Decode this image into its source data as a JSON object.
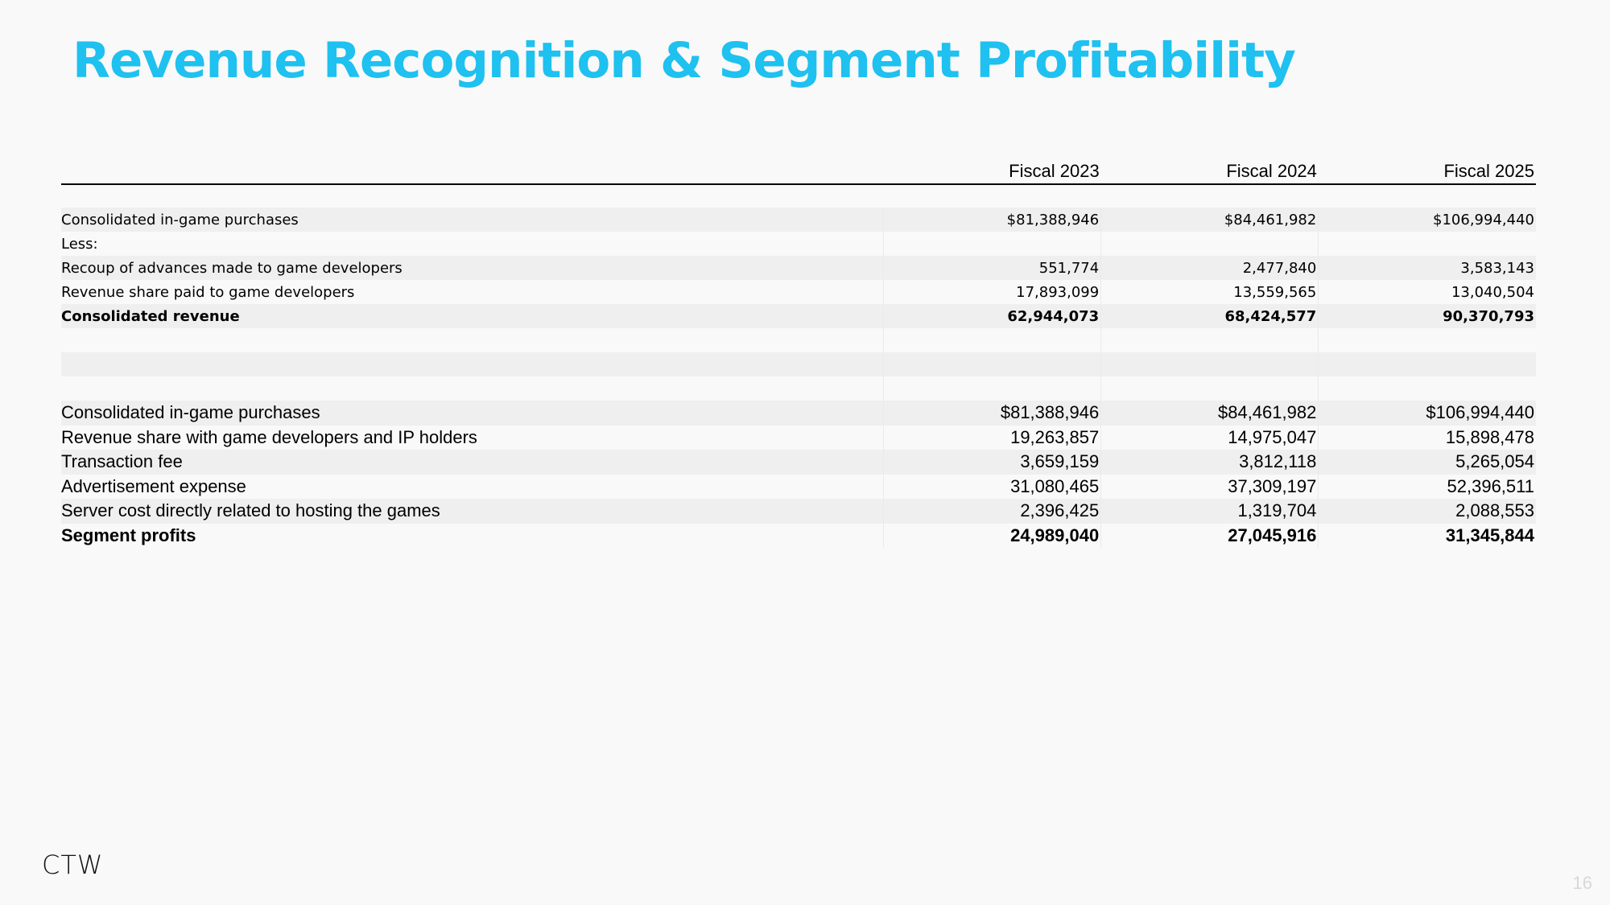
{
  "title": "Revenue Recognition & Segment Profitability",
  "table": {
    "headers": [
      "Fiscal 2023",
      "Fiscal 2024",
      "Fiscal 2025"
    ],
    "revenue_rows": [
      {
        "label": "Consolidated in-game purchases",
        "values": [
          "$81,388,946",
          "$84,461,982",
          "$106,994,440"
        ]
      },
      {
        "label": "Less:",
        "values": [
          "",
          "",
          ""
        ]
      },
      {
        "label": "Recoup of advances made to game developers",
        "values": [
          "551,774",
          "2,477,840",
          "3,583,143"
        ]
      },
      {
        "label": "Revenue share paid to game developers",
        "values": [
          "17,893,099",
          "13,559,565",
          "13,040,504"
        ]
      },
      {
        "label": "Consolidated revenue",
        "values": [
          "62,944,073",
          "68,424,577",
          "90,370,793"
        ],
        "bold": true
      }
    ],
    "segment_rows": [
      {
        "label": "Consolidated in-game purchases",
        "values": [
          "$81,388,946",
          "$84,461,982",
          "$106,994,440"
        ]
      },
      {
        "label": "Revenue share with game developers and IP holders",
        "values": [
          "19,263,857",
          "14,975,047",
          "15,898,478"
        ]
      },
      {
        "label": "Transaction fee",
        "values": [
          "3,659,159",
          "3,812,118",
          "5,265,054"
        ]
      },
      {
        "label": "Advertisement expense",
        "values": [
          "31,080,465",
          "37,309,197",
          "52,396,511"
        ]
      },
      {
        "label": "Server cost directly related to hosting the games",
        "values": [
          "2,396,425",
          "1,319,704",
          "2,088,553"
        ]
      },
      {
        "label": "Segment profits",
        "values": [
          "24,989,040",
          "27,045,916",
          "31,345,844"
        ],
        "bold": true
      }
    ]
  },
  "logo": "CTW",
  "page_number": "16"
}
